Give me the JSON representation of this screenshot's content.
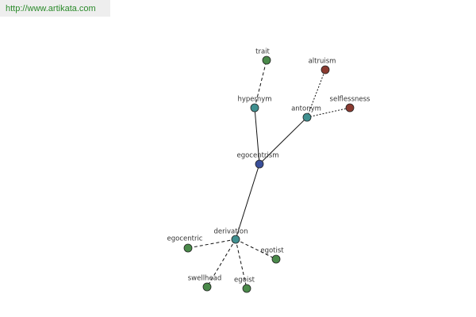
{
  "header": {
    "url": "http://www.artikata.com"
  },
  "nodes": [
    {
      "label": "egocentrism"
    },
    {
      "label": "hypernym"
    },
    {
      "label": "trait"
    },
    {
      "label": "antonym"
    },
    {
      "label": "altruism"
    },
    {
      "label": "selflessness"
    },
    {
      "label": "derivation"
    },
    {
      "label": "egocentric"
    },
    {
      "label": "egotist"
    },
    {
      "label": "swellhead"
    },
    {
      "label": "egoist"
    }
  ]
}
